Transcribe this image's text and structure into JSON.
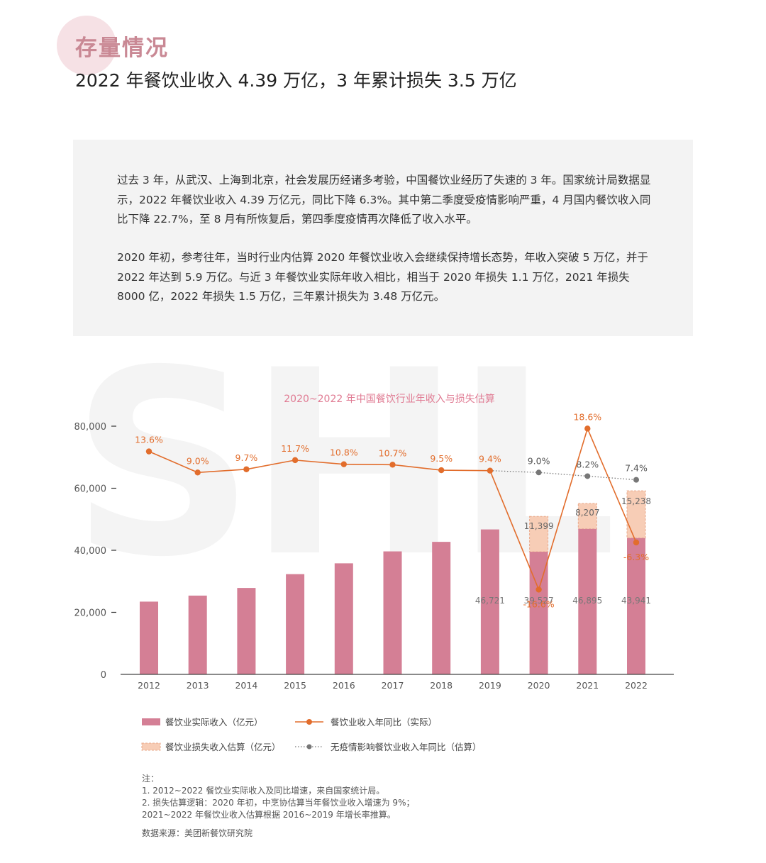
{
  "header": {
    "section_title": "存量情况",
    "headline": "2022 年餐饮业收入 4.39 万亿，3 年累计损失 3.5 万亿"
  },
  "intro": {
    "paragraph1": "过去 3 年，从武汉、上海到北京，社会发展历经诸多考验，中国餐饮业经历了失速的 3 年。国家统计局数据显示，2022 年餐饮业收入 4.39 万亿元，同比下降 6.3%。其中第二季度受疫情影响严重，4 月国内餐饮收入同比下降 22.7%，至 8 月有所恢复后，第四季度疫情再次降低了收入水平。",
    "paragraph2": "2020 年初，参考往年，当时行业内估算 2020 年餐饮业收入会继续保持增长态势，年收入突破 5 万亿，并于 2022 年达到 5.9 万亿。与近 3 年餐饮业实际年收入相比，相当于 2020 年损失 1.1 万亿，2021 年损失 8000 亿，2022 年损失 1.5 万亿，三年累计损失为 3.48 万亿元。"
  },
  "watermark": "SHL",
  "chart_data": {
    "type": "bar",
    "title": "2020~2022 年中国餐饮行业年收入与损失估算",
    "categories": [
      "2012",
      "2013",
      "2014",
      "2015",
      "2016",
      "2017",
      "2018",
      "2019",
      "2020",
      "2021",
      "2022"
    ],
    "ylim": [
      0,
      80000
    ],
    "y_ticks": [
      0,
      20000,
      40000,
      60000,
      80000
    ],
    "y_tick_labels": [
      "0",
      "20,000",
      "40,000",
      "60,000",
      "80,000"
    ],
    "series": [
      {
        "name": "餐饮业实际收入（亿元）",
        "type": "bar",
        "color": "#d47f95",
        "values": [
          23448,
          25392,
          27860,
          32310,
          35799,
          39644,
          42716,
          46721,
          39527,
          46895,
          43941
        ],
        "data_labels": [
          null,
          null,
          null,
          null,
          null,
          null,
          null,
          "46,721",
          "39,527",
          "46,895",
          "43,941"
        ]
      },
      {
        "name": "餐饮业损失收入估算（亿元）",
        "type": "bar-stacked",
        "color": "#f7cdb6",
        "values": [
          null,
          null,
          null,
          null,
          null,
          null,
          null,
          null,
          11399,
          8207,
          15238
        ],
        "data_labels": [
          null,
          null,
          null,
          null,
          null,
          null,
          null,
          null,
          "11,399",
          "8,207",
          "15,238"
        ]
      },
      {
        "name": "餐饮业收入年同比（实际）",
        "type": "line",
        "color": "#e26d2c",
        "values_percent": [
          13.6,
          9.0,
          9.7,
          11.7,
          10.8,
          10.7,
          9.5,
          9.4,
          -16.6,
          18.6,
          -6.3
        ],
        "labels": [
          "13.6%",
          "9.0%",
          "9.7%",
          "11.7%",
          "10.8%",
          "10.7%",
          "9.5%",
          "9.4%",
          "-16.6%",
          "18.6%",
          "-6.3%"
        ]
      },
      {
        "name": "无疫情影响餐饮业收入年同比（估算）",
        "type": "line-dotted",
        "color": "#777777",
        "values_percent": [
          null,
          null,
          null,
          null,
          null,
          null,
          null,
          9.4,
          9.0,
          8.2,
          7.4
        ],
        "labels": [
          null,
          null,
          null,
          null,
          null,
          null,
          null,
          null,
          "9.0%",
          "8.2%",
          "7.4%"
        ]
      }
    ],
    "legend_placement": "bottom"
  },
  "notes": {
    "heading": "注：",
    "line1": "1. 2012~2022 餐饮业实际收入及同比增速，来自国家统计局。",
    "line2": "2. 损失估算逻辑：2020 年初，中烹协估算当年餐饮业收入增速为 9%；",
    "line3": "2021~2022 年餐饮业收入估算根据 2016~2019 年增长率推算。",
    "source": "数据来源：美团新餐饮研究院"
  }
}
